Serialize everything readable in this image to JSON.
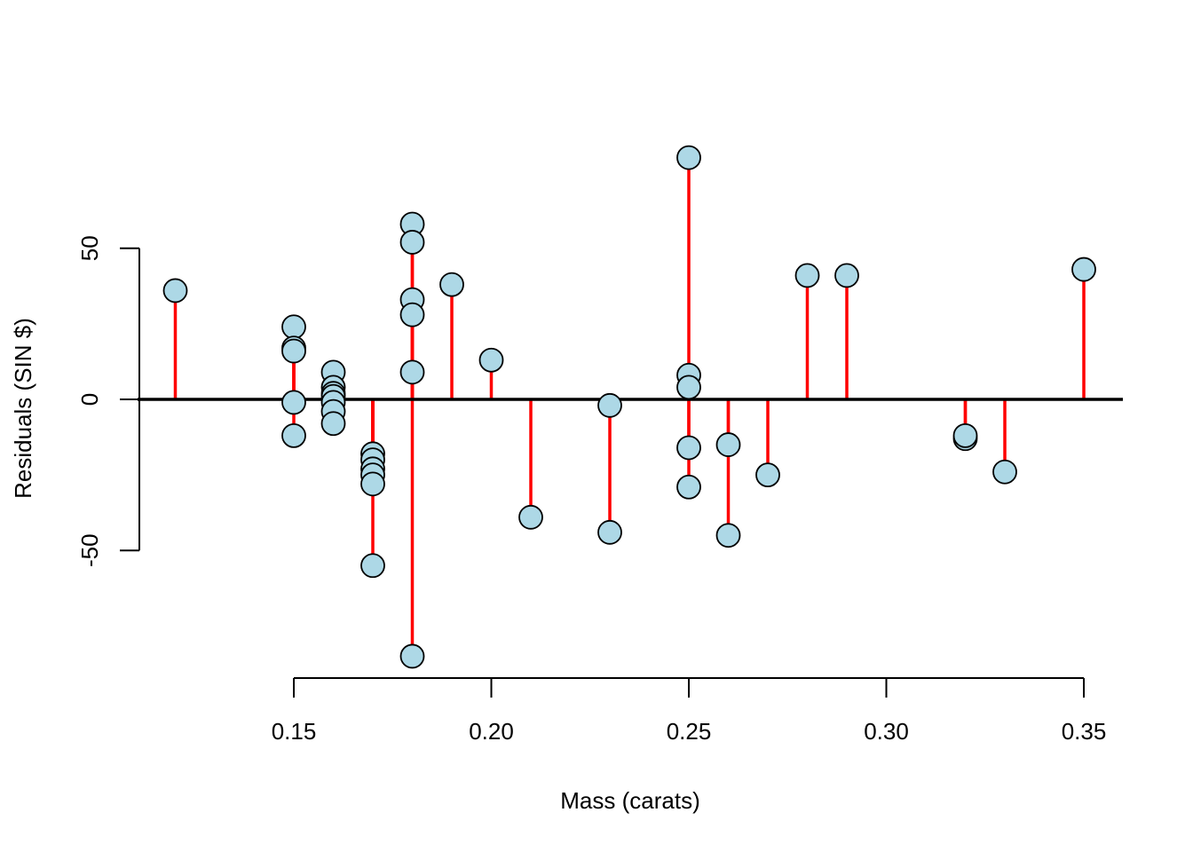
{
  "chart_data": {
    "type": "scatter",
    "title": "",
    "xlabel": "Mass (carats)",
    "ylabel": "Residuals (SIN $)",
    "xlim": [
      0.11,
      0.36
    ],
    "ylim": [
      -92,
      81
    ],
    "x_ticks": [
      {
        "value": 0.15,
        "label": "0.15"
      },
      {
        "value": 0.2,
        "label": "0.20"
      },
      {
        "value": 0.25,
        "label": "0.25"
      },
      {
        "value": 0.3,
        "label": "0.30"
      },
      {
        "value": 0.35,
        "label": "0.35"
      }
    ],
    "y_ticks": [
      {
        "value": -50,
        "label": "-50"
      },
      {
        "value": 0,
        "label": "0"
      },
      {
        "value": 50,
        "label": "50"
      }
    ],
    "reference_line": 0,
    "grid": false,
    "legend": "none",
    "colors": {
      "point_fill": "#add8e6",
      "point_stroke": "#000000",
      "residual_segment": "#ff0000",
      "reference_line": "#000000"
    },
    "series": [
      {
        "x": [
          0.12,
          0.15,
          0.15,
          0.15,
          0.15,
          0.15,
          0.16,
          0.16,
          0.16,
          0.16,
          0.16,
          0.16,
          0.16,
          0.17,
          0.17,
          0.17,
          0.17,
          0.17,
          0.17,
          0.18,
          0.18,
          0.18,
          0.18,
          0.18,
          0.18,
          0.19,
          0.2,
          0.21,
          0.23,
          0.23,
          0.25,
          0.25,
          0.25,
          0.25,
          0.25,
          0.26,
          0.26,
          0.27,
          0.28,
          0.29,
          0.32,
          0.32,
          0.33,
          0.35
        ],
        "y": [
          36,
          24,
          17,
          16,
          -1,
          -12,
          9,
          4,
          2,
          1,
          -1,
          -4,
          -8,
          -18,
          -20,
          -23,
          -25,
          -28,
          -55,
          58,
          52,
          33,
          28,
          9,
          -85,
          38,
          13,
          -39,
          -2,
          -44,
          80,
          8,
          4,
          -16,
          -29,
          -15,
          -45,
          -25,
          41,
          41,
          -13,
          -12,
          -24,
          43
        ]
      }
    ]
  }
}
